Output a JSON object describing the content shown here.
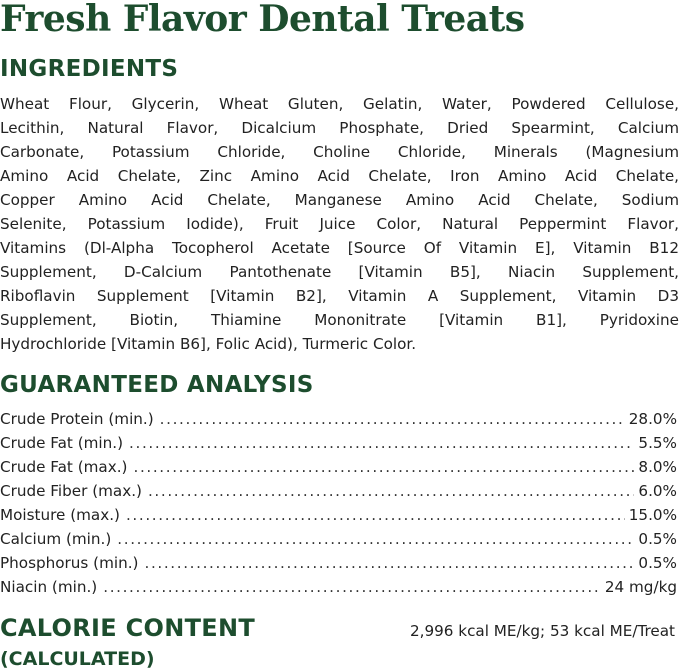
{
  "title": "Fresh Flavor Dental Treats",
  "ingredients": {
    "heading": "INGREDIENTS",
    "lines": [
      "Wheat Flour, Glycerin, Wheat Gluten, Gelatin, Water, Powdered Cellulose,",
      "Lecithin, Natural Flavor, Dicalcium Phosphate, Dried Spearmint, Calcium",
      "Carbonate, Potassium Chloride, Choline Chloride, Minerals (Magnesium",
      "Amino Acid Chelate, Zinc Amino Acid Chelate, Iron Amino Acid Chelate,",
      "Copper Amino Acid Chelate, Manganese Amino Acid Chelate, Sodium",
      "Selenite, Potassium Iodide), Fruit Juice Color, Natural Peppermint Flavor,",
      "Vitamins (Dl-Alpha Tocopherol Acetate [Source Of Vitamin E], Vitamin B12",
      "Supplement, D-Calcium Pantothenate [Vitamin B5], Niacin Supplement,",
      "Riboflavin Supplement [Vitamin B2], Vitamin A Supplement, Vitamin D3",
      "Supplement, Biotin, Thiamine Mononitrate [Vitamin B1], Pyridoxine",
      "Hydrochloride [Vitamin B6], Folic Acid), Turmeric Color."
    ]
  },
  "analysis": {
    "heading": "GUARANTEED ANALYSIS",
    "rows": [
      {
        "label": "Crude Protein (min.)",
        "value": "28.0%"
      },
      {
        "label": "Crude Fat (min.)",
        "value": "5.5%"
      },
      {
        "label": "Crude Fat (max.)",
        "value": "8.0%"
      },
      {
        "label": "Crude Fiber (max.)",
        "value": "6.0%"
      },
      {
        "label": "Moisture (max.)",
        "value": "15.0%"
      },
      {
        "label": "Calcium (min.)",
        "value": "0.5%"
      },
      {
        "label": "Phosphorus (min.)",
        "value": "0.5%"
      },
      {
        "label": "Niacin (min.)",
        "value": "24 mg/kg"
      }
    ]
  },
  "calorie": {
    "heading": "CALORIE CONTENT",
    "subheading": "(CALCULATED)",
    "value": "2,996 kcal ME/kg; 53 kcal ME/Treat"
  },
  "colors": {
    "brand_green": "#1d4d2e",
    "text": "#222222"
  }
}
